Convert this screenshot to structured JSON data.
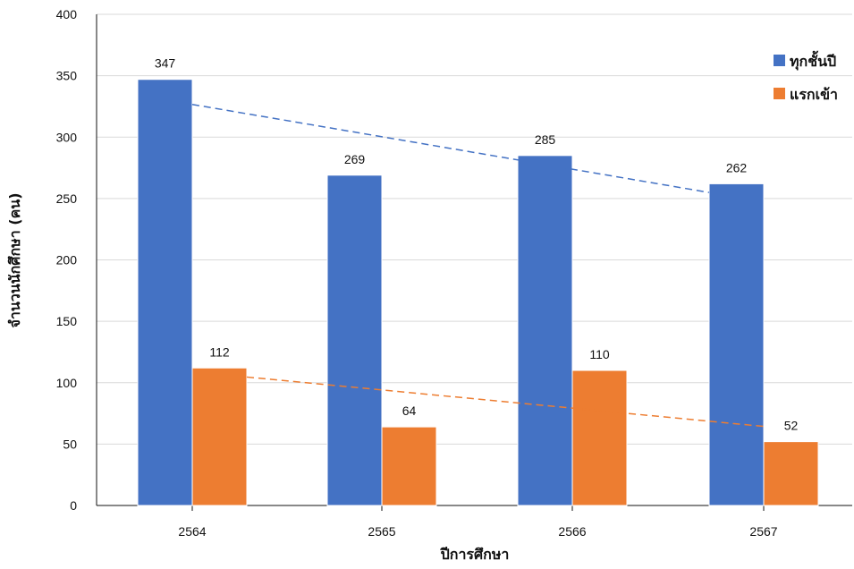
{
  "chart_data": {
    "type": "bar",
    "categories": [
      "2564",
      "2565",
      "2566",
      "2567"
    ],
    "series": [
      {
        "name": "ทุกชั้นปี",
        "values": [
          347,
          269,
          285,
          262
        ],
        "color": "#4472C4"
      },
      {
        "name": "แรกเข้า",
        "values": [
          112,
          64,
          110,
          52
        ],
        "color": "#ED7D31"
      }
    ],
    "trendlines": [
      {
        "series": "ทุกชั้นปี",
        "style": "dashed",
        "color": "#4472C4"
      },
      {
        "series": "แรกเข้า",
        "style": "dashed",
        "color": "#ED7D31"
      }
    ],
    "xlabel": "ปีการศึกษา",
    "ylabel": "จำนวนนักศึกษา (คน)",
    "ylim": [
      0,
      400
    ],
    "yticks": [
      0,
      50,
      100,
      150,
      200,
      250,
      300,
      350,
      400
    ],
    "grid": true,
    "legend": "top-right",
    "data_labels": true
  }
}
